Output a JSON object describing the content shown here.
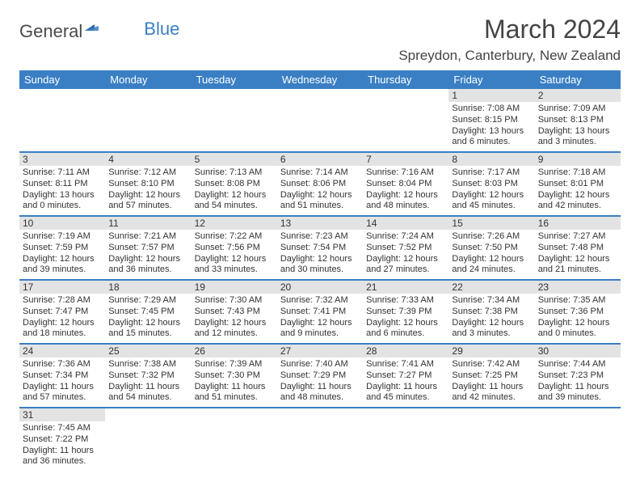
{
  "logo": {
    "text_general": "General",
    "text_blue": "Blue"
  },
  "title": "March 2024",
  "location": "Spreydon, Canterbury, New Zealand",
  "colors": {
    "header_bg": "#3a7fc4",
    "header_text": "#ffffff",
    "daynum_bg": "#e3e3e3",
    "row_divider": "#3a7fc4",
    "text": "#333333",
    "background": "#ffffff"
  },
  "fonts": {
    "title_size_pt": 24,
    "location_size_pt": 13,
    "header_size_pt": 10,
    "cell_size_pt": 8
  },
  "day_headers": [
    "Sunday",
    "Monday",
    "Tuesday",
    "Wednesday",
    "Thursday",
    "Friday",
    "Saturday"
  ],
  "layout": {
    "columns": 7,
    "rows": 6,
    "first_day_column_index": 5,
    "days_in_month": 31
  },
  "days": [
    {
      "n": 1,
      "sunrise": "7:08 AM",
      "sunset": "8:15 PM",
      "daylight": "13 hours and 6 minutes."
    },
    {
      "n": 2,
      "sunrise": "7:09 AM",
      "sunset": "8:13 PM",
      "daylight": "13 hours and 3 minutes."
    },
    {
      "n": 3,
      "sunrise": "7:11 AM",
      "sunset": "8:11 PM",
      "daylight": "13 hours and 0 minutes."
    },
    {
      "n": 4,
      "sunrise": "7:12 AM",
      "sunset": "8:10 PM",
      "daylight": "12 hours and 57 minutes."
    },
    {
      "n": 5,
      "sunrise": "7:13 AM",
      "sunset": "8:08 PM",
      "daylight": "12 hours and 54 minutes."
    },
    {
      "n": 6,
      "sunrise": "7:14 AM",
      "sunset": "8:06 PM",
      "daylight": "12 hours and 51 minutes."
    },
    {
      "n": 7,
      "sunrise": "7:16 AM",
      "sunset": "8:04 PM",
      "daylight": "12 hours and 48 minutes."
    },
    {
      "n": 8,
      "sunrise": "7:17 AM",
      "sunset": "8:03 PM",
      "daylight": "12 hours and 45 minutes."
    },
    {
      "n": 9,
      "sunrise": "7:18 AM",
      "sunset": "8:01 PM",
      "daylight": "12 hours and 42 minutes."
    },
    {
      "n": 10,
      "sunrise": "7:19 AM",
      "sunset": "7:59 PM",
      "daylight": "12 hours and 39 minutes."
    },
    {
      "n": 11,
      "sunrise": "7:21 AM",
      "sunset": "7:57 PM",
      "daylight": "12 hours and 36 minutes."
    },
    {
      "n": 12,
      "sunrise": "7:22 AM",
      "sunset": "7:56 PM",
      "daylight": "12 hours and 33 minutes."
    },
    {
      "n": 13,
      "sunrise": "7:23 AM",
      "sunset": "7:54 PM",
      "daylight": "12 hours and 30 minutes."
    },
    {
      "n": 14,
      "sunrise": "7:24 AM",
      "sunset": "7:52 PM",
      "daylight": "12 hours and 27 minutes."
    },
    {
      "n": 15,
      "sunrise": "7:26 AM",
      "sunset": "7:50 PM",
      "daylight": "12 hours and 24 minutes."
    },
    {
      "n": 16,
      "sunrise": "7:27 AM",
      "sunset": "7:48 PM",
      "daylight": "12 hours and 21 minutes."
    },
    {
      "n": 17,
      "sunrise": "7:28 AM",
      "sunset": "7:47 PM",
      "daylight": "12 hours and 18 minutes."
    },
    {
      "n": 18,
      "sunrise": "7:29 AM",
      "sunset": "7:45 PM",
      "daylight": "12 hours and 15 minutes."
    },
    {
      "n": 19,
      "sunrise": "7:30 AM",
      "sunset": "7:43 PM",
      "daylight": "12 hours and 12 minutes."
    },
    {
      "n": 20,
      "sunrise": "7:32 AM",
      "sunset": "7:41 PM",
      "daylight": "12 hours and 9 minutes."
    },
    {
      "n": 21,
      "sunrise": "7:33 AM",
      "sunset": "7:39 PM",
      "daylight": "12 hours and 6 minutes."
    },
    {
      "n": 22,
      "sunrise": "7:34 AM",
      "sunset": "7:38 PM",
      "daylight": "12 hours and 3 minutes."
    },
    {
      "n": 23,
      "sunrise": "7:35 AM",
      "sunset": "7:36 PM",
      "daylight": "12 hours and 0 minutes."
    },
    {
      "n": 24,
      "sunrise": "7:36 AM",
      "sunset": "7:34 PM",
      "daylight": "11 hours and 57 minutes."
    },
    {
      "n": 25,
      "sunrise": "7:38 AM",
      "sunset": "7:32 PM",
      "daylight": "11 hours and 54 minutes."
    },
    {
      "n": 26,
      "sunrise": "7:39 AM",
      "sunset": "7:30 PM",
      "daylight": "11 hours and 51 minutes."
    },
    {
      "n": 27,
      "sunrise": "7:40 AM",
      "sunset": "7:29 PM",
      "daylight": "11 hours and 48 minutes."
    },
    {
      "n": 28,
      "sunrise": "7:41 AM",
      "sunset": "7:27 PM",
      "daylight": "11 hours and 45 minutes."
    },
    {
      "n": 29,
      "sunrise": "7:42 AM",
      "sunset": "7:25 PM",
      "daylight": "11 hours and 42 minutes."
    },
    {
      "n": 30,
      "sunrise": "7:44 AM",
      "sunset": "7:23 PM",
      "daylight": "11 hours and 39 minutes."
    },
    {
      "n": 31,
      "sunrise": "7:45 AM",
      "sunset": "7:22 PM",
      "daylight": "11 hours and 36 minutes."
    }
  ],
  "labels": {
    "sunrise": "Sunrise:",
    "sunset": "Sunset:",
    "daylight": "Daylight:"
  }
}
